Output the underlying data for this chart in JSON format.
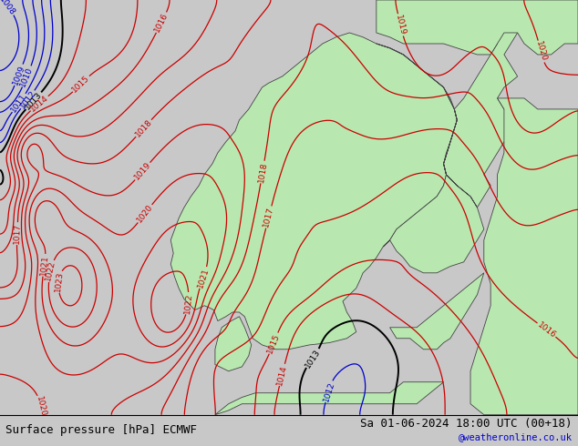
{
  "title_left": "Surface pressure [hPa] ECMWF",
  "title_right": "Sa 01-06-2024 18:00 UTC (00+18)",
  "watermark": "@weatheronline.co.uk",
  "bg_color": "#c8c8c8",
  "land_color": "#b8e8b0",
  "isobar_color_low": "#0000cc",
  "isobar_color_zero": "#000000",
  "isobar_color_high": "#cc0000",
  "isobar_zero": 1013,
  "isobar_min": 1005,
  "isobar_max": 1023,
  "isobar_step": 1,
  "label_fontsize": 6.5,
  "title_fontsize": 9,
  "watermark_color": "#0000cc",
  "lon_min": -8,
  "lon_max": 35,
  "lat_min": 53,
  "lat_max": 72
}
